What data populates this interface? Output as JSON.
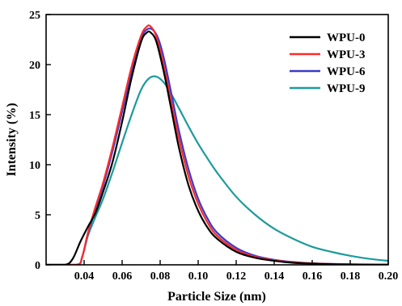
{
  "chart_data": {
    "type": "line",
    "xlabel": "Particle Size (nm)",
    "ylabel": "Intensity (%)",
    "xlim": [
      0.02,
      0.2
    ],
    "ylim": [
      0,
      25
    ],
    "xticks": [
      0.04,
      0.06,
      0.08,
      0.1,
      0.12,
      0.14,
      0.16,
      0.18,
      0.2
    ],
    "xtick_labels": [
      "0.04",
      "0.06",
      "0.08",
      "0.10",
      "0.12",
      "0.14",
      "0.16",
      "0.18",
      "0.20"
    ],
    "yticks": [
      0,
      5,
      10,
      15,
      20,
      25
    ],
    "ytick_labels": [
      "0",
      "5",
      "10",
      "15",
      "20",
      "25"
    ],
    "legend_position": "top-right",
    "grid": false,
    "series": [
      {
        "name": "WPU-0",
        "color": "#000000",
        "x": [
          0.02,
          0.03,
          0.034,
          0.038,
          0.042,
          0.046,
          0.05,
          0.055,
          0.06,
          0.065,
          0.07,
          0.073,
          0.075,
          0.078,
          0.082,
          0.086,
          0.09,
          0.095,
          0.1,
          0.105,
          0.11,
          0.12,
          0.13,
          0.14,
          0.15,
          0.16,
          0.17,
          0.18,
          0.19,
          0.2
        ],
        "y": [
          0.0,
          0.0,
          0.6,
          2.3,
          3.8,
          5.2,
          7.3,
          10.3,
          14.3,
          18.7,
          22.3,
          23.2,
          23.2,
          22.3,
          19.2,
          15.4,
          11.6,
          7.9,
          5.4,
          3.7,
          2.6,
          1.3,
          0.7,
          0.4,
          0.2,
          0.12,
          0.06,
          0.03,
          0.02,
          0.01
        ]
      },
      {
        "name": "WPU-3",
        "color": "#ff2a2a",
        "x": [
          0.02,
          0.036,
          0.039,
          0.042,
          0.046,
          0.05,
          0.055,
          0.06,
          0.065,
          0.07,
          0.073,
          0.075,
          0.078,
          0.082,
          0.086,
          0.09,
          0.095,
          0.1,
          0.105,
          0.11,
          0.12,
          0.13,
          0.14,
          0.15,
          0.16,
          0.17,
          0.18,
          0.19,
          0.2
        ],
        "y": [
          0.0,
          0.0,
          0.8,
          3.2,
          5.8,
          8.2,
          11.8,
          15.8,
          19.8,
          22.9,
          23.8,
          23.8,
          22.8,
          19.8,
          16.1,
          12.5,
          8.8,
          6.1,
          4.2,
          2.9,
          1.5,
          0.8,
          0.45,
          0.25,
          0.14,
          0.08,
          0.04,
          0.02,
          0.01
        ]
      },
      {
        "name": "WPU-6",
        "color": "#3a3acc",
        "x": [
          0.02,
          0.036,
          0.039,
          0.042,
          0.046,
          0.05,
          0.055,
          0.06,
          0.065,
          0.07,
          0.073,
          0.076,
          0.079,
          0.082,
          0.086,
          0.09,
          0.095,
          0.1,
          0.105,
          0.11,
          0.12,
          0.13,
          0.14,
          0.15,
          0.16,
          0.17,
          0.18,
          0.19,
          0.2
        ],
        "y": [
          0.0,
          0.0,
          0.8,
          3.1,
          5.6,
          7.9,
          11.4,
          15.3,
          19.3,
          22.6,
          23.5,
          23.5,
          22.6,
          20.6,
          17.0,
          13.3,
          9.5,
          6.6,
          4.6,
          3.2,
          1.7,
          0.9,
          0.5,
          0.28,
          0.15,
          0.09,
          0.05,
          0.03,
          0.02
        ]
      },
      {
        "name": "WPU-9",
        "color": "#1e9a9a",
        "x": [
          0.02,
          0.036,
          0.039,
          0.042,
          0.046,
          0.05,
          0.055,
          0.06,
          0.065,
          0.07,
          0.074,
          0.078,
          0.082,
          0.086,
          0.09,
          0.095,
          0.1,
          0.105,
          0.11,
          0.12,
          0.13,
          0.14,
          0.15,
          0.16,
          0.17,
          0.18,
          0.19,
          0.2
        ],
        "y": [
          0.0,
          0.0,
          0.8,
          2.9,
          4.8,
          6.6,
          9.3,
          12.2,
          15.0,
          17.5,
          18.6,
          18.8,
          18.2,
          17.0,
          15.6,
          13.8,
          12.1,
          10.6,
          9.2,
          6.8,
          5.0,
          3.6,
          2.6,
          1.8,
          1.3,
          0.9,
          0.6,
          0.4
        ]
      }
    ]
  }
}
